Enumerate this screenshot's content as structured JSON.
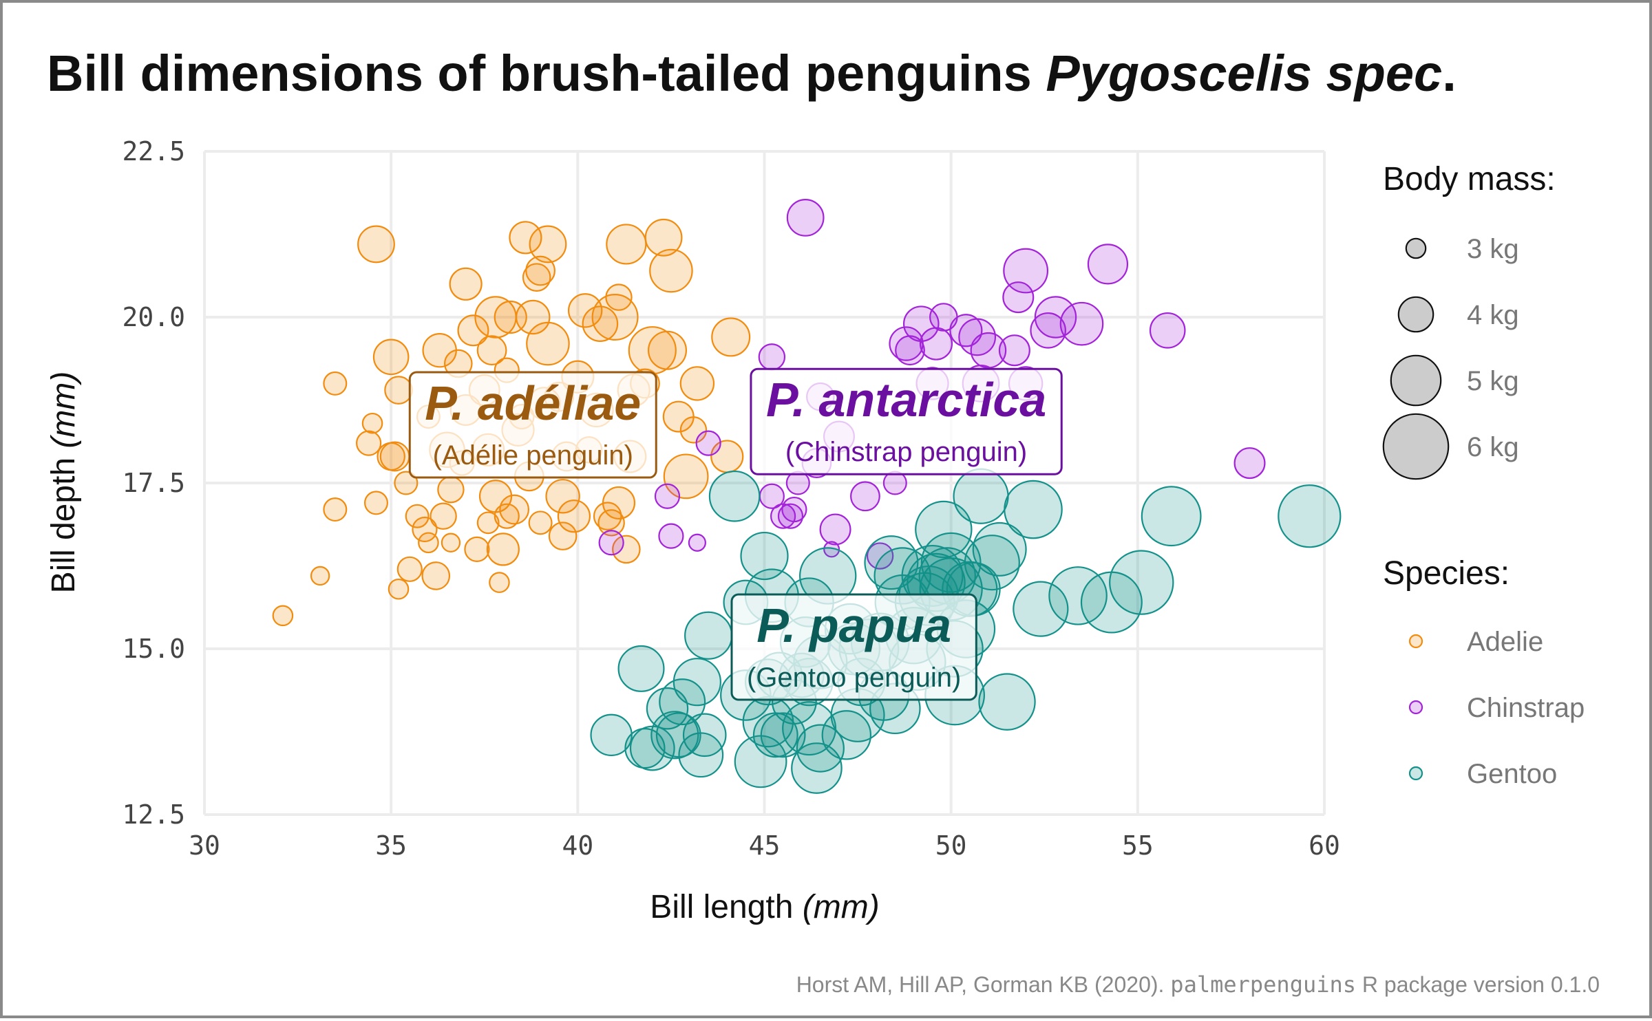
{
  "chart_data": {
    "type": "scatter",
    "title": {
      "main": "Bill dimensions of brush-tailed penguins ",
      "italic": "Pygoscelis spec",
      "end": "."
    },
    "xlabel": {
      "text": "Bill length ",
      "unit": "(mm)"
    },
    "ylabel": {
      "text": "Bill depth ",
      "unit": "(mm)"
    },
    "xlim": [
      30,
      60
    ],
    "ylim": [
      12.5,
      22.5
    ],
    "xticks": [
      "30",
      "35",
      "40",
      "45",
      "50",
      "55",
      "60"
    ],
    "yticks": [
      "12.5",
      "15.0",
      "17.5",
      "20.0",
      "22.5"
    ],
    "grid": true,
    "size_legend": {
      "title": "Body mass:",
      "items": [
        {
          "label": "3 kg",
          "mass": 3
        },
        {
          "label": "4 kg",
          "mass": 4
        },
        {
          "label": "5 kg",
          "mass": 5
        },
        {
          "label": "6 kg",
          "mass": 6
        }
      ]
    },
    "color_legend": {
      "title": "Species:",
      "items": [
        "Adelie",
        "Chinstrap",
        "Gentoo"
      ]
    },
    "colors": {
      "Adelie": "#f28c0f",
      "Chinstrap": "#a323d9",
      "Gentoo": "#14918a"
    },
    "label_colors": {
      "Adelie": "#9a5a0f",
      "Chinstrap": "#6a0fa0",
      "Gentoo": "#0b5c58"
    },
    "group_labels": [
      {
        "species": "Adelie",
        "name": "P. adéliae",
        "common": "(Adélie penguin)",
        "x": 38.8,
        "y": 18.35
      },
      {
        "species": "Chinstrap",
        "name": "P. antarctica",
        "common": "(Chinstrap penguin)",
        "x": 48.8,
        "y": 18.4
      },
      {
        "species": "Gentoo",
        "name": "P. papua",
        "common": "(Gentoo penguin)",
        "x": 47.4,
        "y": 15.0
      }
    ],
    "caption": {
      "text1": "Horst AM, Hill AP, Gorman KB (2020). ",
      "code": "palmerpenguins",
      "text2": " R package version 0.1.0"
    },
    "series": [
      {
        "name": "Adelie",
        "points": [
          [
            34.6,
            21.1,
            4.1
          ],
          [
            38.6,
            21.2,
            3.8
          ],
          [
            39.2,
            21.1,
            4.1
          ],
          [
            41.3,
            21.1,
            4.3
          ],
          [
            42.3,
            21.2,
            4.1
          ],
          [
            39.0,
            20.7,
            3.6
          ],
          [
            42.5,
            20.7,
            4.5
          ],
          [
            37.0,
            20.5,
            3.8
          ],
          [
            38.9,
            20.6,
            3.5
          ],
          [
            41.1,
            20.3,
            3.4
          ],
          [
            40.2,
            20.1,
            3.9
          ],
          [
            41.0,
            20.0,
            4.7
          ],
          [
            37.8,
            20.0,
            4.4
          ],
          [
            38.2,
            20.0,
            3.8
          ],
          [
            38.8,
            20.0,
            3.9
          ],
          [
            40.6,
            19.9,
            4.0
          ],
          [
            37.2,
            19.8,
            3.7
          ],
          [
            39.2,
            19.6,
            4.5
          ],
          [
            35.0,
            19.4,
            4.0
          ],
          [
            36.3,
            19.5,
            3.9
          ],
          [
            37.7,
            19.5,
            3.6
          ],
          [
            42.0,
            19.5,
            4.8
          ],
          [
            42.4,
            19.5,
            4.2
          ],
          [
            44.1,
            19.7,
            4.2
          ],
          [
            33.5,
            19.0,
            3.2
          ],
          [
            36.8,
            19.3,
            3.5
          ],
          [
            38.1,
            19.2,
            3.3
          ],
          [
            40.0,
            19.1,
            3.8
          ],
          [
            41.8,
            19.0,
            3.6
          ],
          [
            43.2,
            19.0,
            3.9
          ],
          [
            35.2,
            18.9,
            3.5
          ],
          [
            37.5,
            18.9,
            3.7
          ],
          [
            39.5,
            18.8,
            3.6
          ],
          [
            41.5,
            18.9,
            3.8
          ],
          [
            36.0,
            18.5,
            3.2
          ],
          [
            38.5,
            18.5,
            3.3
          ],
          [
            40.5,
            18.6,
            3.9
          ],
          [
            42.7,
            18.5,
            3.7
          ],
          [
            34.5,
            18.4,
            3.0
          ],
          [
            43.1,
            18.3,
            3.4
          ],
          [
            34.4,
            18.1,
            3.3
          ],
          [
            37.6,
            18.0,
            3.8
          ],
          [
            39.7,
            17.9,
            3.6
          ],
          [
            41.4,
            17.9,
            3.8
          ],
          [
            44.0,
            17.9,
            3.8
          ],
          [
            35.0,
            17.9,
            3.5
          ],
          [
            35.1,
            17.9,
            3.6
          ],
          [
            42.9,
            17.6,
            4.6
          ],
          [
            35.4,
            17.5,
            3.2
          ],
          [
            36.6,
            17.4,
            3.4
          ],
          [
            37.8,
            17.3,
            3.8
          ],
          [
            39.6,
            17.3,
            3.9
          ],
          [
            41.1,
            17.2,
            3.8
          ],
          [
            34.6,
            17.2,
            3.2
          ],
          [
            33.5,
            17.1,
            3.2
          ],
          [
            35.7,
            17.0,
            3.2
          ],
          [
            36.4,
            17.0,
            3.4
          ],
          [
            38.3,
            17.1,
            3.6
          ],
          [
            39.9,
            17.0,
            3.8
          ],
          [
            40.9,
            16.9,
            3.4
          ],
          [
            35.9,
            16.8,
            3.3
          ],
          [
            37.6,
            16.9,
            3.1
          ],
          [
            39.0,
            16.9,
            3.2
          ],
          [
            38.1,
            17.0,
            3.3
          ],
          [
            40.8,
            17.0,
            3.5
          ],
          [
            36.0,
            16.6,
            3.0
          ],
          [
            39.6,
            16.7,
            3.5
          ],
          [
            37.3,
            16.5,
            3.3
          ],
          [
            38.0,
            16.5,
            3.8
          ],
          [
            36.6,
            16.6,
            2.9
          ],
          [
            41.3,
            16.5,
            3.5
          ],
          [
            35.5,
            16.2,
            3.3
          ],
          [
            36.2,
            16.1,
            3.5
          ],
          [
            37.9,
            16.0,
            3.0
          ],
          [
            33.1,
            16.1,
            2.9
          ],
          [
            35.2,
            15.9,
            3.0
          ],
          [
            32.1,
            15.5,
            3.0
          ],
          [
            37.0,
            18.6,
            3.7
          ],
          [
            38.4,
            18.3,
            3.8
          ],
          [
            36.5,
            18.0,
            4.0
          ],
          [
            40.3,
            18.0,
            3.4
          ],
          [
            39.1,
            18.7,
            3.8
          ],
          [
            36.9,
            17.8,
            3.3
          ],
          [
            38.7,
            17.6,
            3.6
          ]
        ]
      },
      {
        "name": "Chinstrap",
        "points": [
          [
            46.1,
            21.5,
            4.1
          ],
          [
            54.2,
            20.8,
            4.3
          ],
          [
            52.0,
            20.7,
            4.6
          ],
          [
            51.8,
            20.3,
            3.7
          ],
          [
            52.8,
            20.0,
            4.4
          ],
          [
            49.8,
            20.0,
            3.5
          ],
          [
            49.2,
            19.9,
            4.0
          ],
          [
            53.5,
            19.9,
            4.5
          ],
          [
            50.4,
            19.8,
            3.8
          ],
          [
            52.6,
            19.8,
            4.0
          ],
          [
            55.8,
            19.8,
            4.0
          ],
          [
            48.8,
            19.6,
            3.9
          ],
          [
            50.7,
            19.7,
            4.1
          ],
          [
            48.9,
            19.5,
            3.6
          ],
          [
            49.6,
            19.6,
            3.8
          ],
          [
            51.0,
            19.5,
            4.0
          ],
          [
            51.7,
            19.5,
            3.7
          ],
          [
            45.2,
            19.4,
            3.4
          ],
          [
            49.5,
            19.0,
            3.8
          ],
          [
            50.8,
            19.0,
            4.1
          ],
          [
            52.0,
            19.0,
            3.9
          ],
          [
            46.5,
            18.8,
            3.5
          ],
          [
            47.0,
            18.2,
            3.7
          ],
          [
            43.5,
            18.1,
            3.3
          ],
          [
            58.0,
            17.8,
            3.7
          ],
          [
            46.4,
            17.8,
            3.6
          ],
          [
            45.9,
            17.5,
            3.2
          ],
          [
            48.5,
            17.5,
            3.2
          ],
          [
            45.2,
            17.3,
            3.3
          ],
          [
            42.4,
            17.3,
            3.3
          ],
          [
            47.7,
            17.3,
            3.6
          ],
          [
            45.5,
            17.0,
            3.3
          ],
          [
            45.7,
            17.0,
            3.3
          ],
          [
            45.8,
            17.1,
            3.3
          ],
          [
            46.9,
            16.8,
            3.7
          ],
          [
            42.5,
            16.7,
            3.3
          ],
          [
            43.2,
            16.6,
            2.8
          ],
          [
            40.9,
            16.6,
            3.3
          ],
          [
            46.8,
            16.5,
            2.7
          ],
          [
            48.1,
            16.4,
            3.4
          ]
        ]
      },
      {
        "name": "Gentoo",
        "points": [
          [
            59.6,
            17.0,
            5.8
          ],
          [
            55.9,
            17.0,
            5.6
          ],
          [
            52.2,
            17.1,
            5.5
          ],
          [
            50.8,
            17.3,
            5.3
          ],
          [
            49.8,
            16.8,
            5.4
          ],
          [
            44.2,
            17.3,
            5.0
          ],
          [
            51.3,
            16.5,
            5.2
          ],
          [
            50.5,
            15.9,
            5.3
          ],
          [
            55.1,
            16.0,
            5.9
          ],
          [
            54.3,
            15.7,
            5.7
          ],
          [
            53.4,
            15.8,
            5.5
          ],
          [
            52.4,
            15.6,
            5.3
          ],
          [
            50.1,
            15.0,
            5.4
          ],
          [
            49.6,
            16.0,
            5.5
          ],
          [
            48.7,
            16.1,
            5.4
          ],
          [
            48.4,
            16.3,
            5.2
          ],
          [
            47.4,
            15.0,
            5.1
          ],
          [
            46.2,
            14.5,
            4.8
          ],
          [
            45.1,
            14.5,
            4.7
          ],
          [
            46.5,
            14.8,
            5.2
          ],
          [
            47.6,
            14.5,
            4.8
          ],
          [
            48.5,
            14.1,
            5.0
          ],
          [
            49.3,
            15.7,
            5.6
          ],
          [
            50.0,
            15.9,
            5.8
          ],
          [
            49.9,
            16.1,
            5.4
          ],
          [
            45.0,
            16.4,
            4.8
          ],
          [
            45.3,
            13.7,
            4.6
          ],
          [
            44.9,
            13.3,
            5.1
          ],
          [
            46.4,
            13.2,
            5.0
          ],
          [
            43.2,
            14.5,
            4.8
          ],
          [
            42.8,
            14.2,
            4.7
          ],
          [
            43.4,
            13.7,
            4.5
          ],
          [
            41.8,
            13.5,
            4.3
          ],
          [
            40.9,
            13.7,
            4.4
          ],
          [
            42.6,
            13.7,
            4.8
          ],
          [
            43.3,
            13.4,
            4.6
          ],
          [
            43.5,
            15.2,
            4.8
          ],
          [
            41.7,
            14.7,
            4.7
          ],
          [
            45.4,
            14.6,
            4.7
          ],
          [
            46.1,
            15.1,
            5.0
          ],
          [
            44.5,
            15.7,
            4.6
          ],
          [
            45.2,
            15.8,
            5.2
          ],
          [
            46.2,
            15.7,
            4.9
          ],
          [
            46.7,
            16.1,
            5.4
          ],
          [
            46.5,
            13.5,
            4.8
          ],
          [
            45.8,
            14.2,
            4.6
          ],
          [
            47.5,
            14.0,
            5.2
          ],
          [
            48.2,
            14.3,
            5.0
          ],
          [
            49.1,
            14.8,
            5.4
          ],
          [
            49.0,
            15.2,
            5.4
          ],
          [
            50.4,
            15.3,
            5.5
          ],
          [
            51.1,
            16.3,
            5.3
          ],
          [
            50.0,
            16.3,
            5.6
          ],
          [
            48.7,
            15.7,
            5.3
          ],
          [
            47.3,
            15.3,
            5.0
          ],
          [
            45.1,
            13.9,
            5.0
          ],
          [
            46.2,
            13.8,
            5.2
          ],
          [
            47.8,
            15.0,
            5.6
          ],
          [
            48.1,
            15.1,
            5.5
          ],
          [
            49.5,
            16.1,
            5.7
          ],
          [
            50.6,
            15.9,
            5.2
          ],
          [
            51.5,
            14.2,
            5.4
          ],
          [
            50.1,
            14.3,
            5.6
          ],
          [
            49.4,
            15.8,
            5.6
          ],
          [
            42.4,
            14.1,
            4.4
          ],
          [
            42.7,
            13.7,
            4.6
          ],
          [
            44.5,
            14.3,
            5.0
          ],
          [
            45.5,
            13.7,
            4.6
          ],
          [
            46.0,
            14.6,
            4.6
          ],
          [
            47.2,
            13.7,
            4.9
          ],
          [
            42.0,
            13.5,
            4.6
          ]
        ]
      }
    ]
  }
}
